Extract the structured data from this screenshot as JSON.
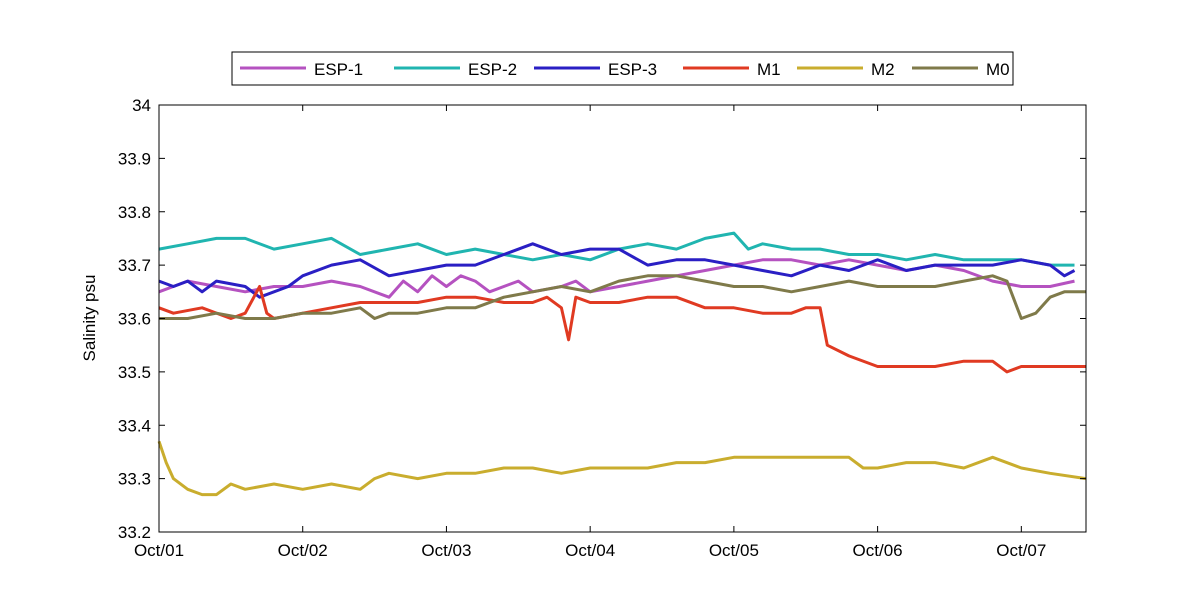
{
  "chart_data": {
    "type": "line",
    "title": "",
    "xlabel": "",
    "ylabel": "Salinity psu",
    "ylim": [
      33.2,
      34.0
    ],
    "xlim": [
      "Oct/01",
      "Oct/07"
    ],
    "x_day_range": [
      1.0,
      7.45
    ],
    "yticks": [
      "33.2",
      "33.3",
      "33.4",
      "33.5",
      "33.6",
      "33.7",
      "33.8",
      "33.9",
      "34"
    ],
    "xticks": [
      {
        "day": 1,
        "label": "Oct/01"
      },
      {
        "day": 2,
        "label": "Oct/02"
      },
      {
        "day": 3,
        "label": "Oct/03"
      },
      {
        "day": 4,
        "label": "Oct/04"
      },
      {
        "day": 5,
        "label": "Oct/05"
      },
      {
        "day": 6,
        "label": "Oct/06"
      },
      {
        "day": 7,
        "label": "Oct/07"
      }
    ],
    "grid": false,
    "legend_position": "top",
    "series": [
      {
        "name": "ESP-1",
        "color": "#b552c0",
        "points": [
          [
            1.0,
            33.65
          ],
          [
            1.2,
            33.67
          ],
          [
            1.4,
            33.66
          ],
          [
            1.6,
            33.65
          ],
          [
            1.8,
            33.66
          ],
          [
            2.0,
            33.66
          ],
          [
            2.2,
            33.67
          ],
          [
            2.4,
            33.66
          ],
          [
            2.6,
            33.64
          ],
          [
            2.7,
            33.67
          ],
          [
            2.8,
            33.65
          ],
          [
            2.9,
            33.68
          ],
          [
            3.0,
            33.66
          ],
          [
            3.1,
            33.68
          ],
          [
            3.2,
            33.67
          ],
          [
            3.3,
            33.65
          ],
          [
            3.5,
            33.67
          ],
          [
            3.6,
            33.65
          ],
          [
            3.8,
            33.66
          ],
          [
            3.9,
            33.67
          ],
          [
            4.0,
            33.65
          ],
          [
            4.2,
            33.66
          ],
          [
            4.4,
            33.67
          ],
          [
            4.6,
            33.68
          ],
          [
            4.8,
            33.69
          ],
          [
            5.0,
            33.7
          ],
          [
            5.2,
            33.71
          ],
          [
            5.4,
            33.71
          ],
          [
            5.6,
            33.7
          ],
          [
            5.8,
            33.71
          ],
          [
            6.0,
            33.7
          ],
          [
            6.2,
            33.69
          ],
          [
            6.4,
            33.7
          ],
          [
            6.6,
            33.69
          ],
          [
            6.8,
            33.67
          ],
          [
            7.0,
            33.66
          ],
          [
            7.2,
            33.66
          ],
          [
            7.37,
            33.67
          ]
        ]
      },
      {
        "name": "ESP-2",
        "color": "#20b5b0",
        "points": [
          [
            1.0,
            33.73
          ],
          [
            1.2,
            33.74
          ],
          [
            1.4,
            33.75
          ],
          [
            1.6,
            33.75
          ],
          [
            1.8,
            33.73
          ],
          [
            2.0,
            33.74
          ],
          [
            2.2,
            33.75
          ],
          [
            2.4,
            33.72
          ],
          [
            2.6,
            33.73
          ],
          [
            2.8,
            33.74
          ],
          [
            3.0,
            33.72
          ],
          [
            3.2,
            33.73
          ],
          [
            3.4,
            33.72
          ],
          [
            3.6,
            33.71
          ],
          [
            3.8,
            33.72
          ],
          [
            4.0,
            33.71
          ],
          [
            4.2,
            33.73
          ],
          [
            4.4,
            33.74
          ],
          [
            4.6,
            33.73
          ],
          [
            4.8,
            33.75
          ],
          [
            5.0,
            33.76
          ],
          [
            5.1,
            33.73
          ],
          [
            5.2,
            33.74
          ],
          [
            5.4,
            33.73
          ],
          [
            5.6,
            33.73
          ],
          [
            5.8,
            33.72
          ],
          [
            6.0,
            33.72
          ],
          [
            6.2,
            33.71
          ],
          [
            6.4,
            33.72
          ],
          [
            6.6,
            33.71
          ],
          [
            6.8,
            33.71
          ],
          [
            7.0,
            33.71
          ],
          [
            7.2,
            33.7
          ],
          [
            7.37,
            33.7
          ]
        ]
      },
      {
        "name": "ESP-3",
        "color": "#2a1fc4",
        "points": [
          [
            1.0,
            33.67
          ],
          [
            1.1,
            33.66
          ],
          [
            1.2,
            33.67
          ],
          [
            1.3,
            33.65
          ],
          [
            1.4,
            33.67
          ],
          [
            1.6,
            33.66
          ],
          [
            1.7,
            33.64
          ],
          [
            1.9,
            33.66
          ],
          [
            2.0,
            33.68
          ],
          [
            2.2,
            33.7
          ],
          [
            2.4,
            33.71
          ],
          [
            2.6,
            33.68
          ],
          [
            2.8,
            33.69
          ],
          [
            3.0,
            33.7
          ],
          [
            3.2,
            33.7
          ],
          [
            3.4,
            33.72
          ],
          [
            3.6,
            33.74
          ],
          [
            3.8,
            33.72
          ],
          [
            4.0,
            33.73
          ],
          [
            4.2,
            33.73
          ],
          [
            4.4,
            33.7
          ],
          [
            4.6,
            33.71
          ],
          [
            4.8,
            33.71
          ],
          [
            5.0,
            33.7
          ],
          [
            5.2,
            33.69
          ],
          [
            5.4,
            33.68
          ],
          [
            5.6,
            33.7
          ],
          [
            5.8,
            33.69
          ],
          [
            6.0,
            33.71
          ],
          [
            6.2,
            33.69
          ],
          [
            6.4,
            33.7
          ],
          [
            6.6,
            33.7
          ],
          [
            6.8,
            33.7
          ],
          [
            7.0,
            33.71
          ],
          [
            7.2,
            33.7
          ],
          [
            7.3,
            33.68
          ],
          [
            7.37,
            33.69
          ]
        ]
      },
      {
        "name": "M1",
        "color": "#e03a22",
        "points": [
          [
            1.0,
            33.62
          ],
          [
            1.1,
            33.61
          ],
          [
            1.3,
            33.62
          ],
          [
            1.5,
            33.6
          ],
          [
            1.6,
            33.61
          ],
          [
            1.7,
            33.66
          ],
          [
            1.75,
            33.61
          ],
          [
            1.8,
            33.6
          ],
          [
            2.0,
            33.61
          ],
          [
            2.2,
            33.62
          ],
          [
            2.4,
            33.63
          ],
          [
            2.6,
            33.63
          ],
          [
            2.8,
            33.63
          ],
          [
            3.0,
            33.64
          ],
          [
            3.2,
            33.64
          ],
          [
            3.4,
            33.63
          ],
          [
            3.6,
            33.63
          ],
          [
            3.7,
            33.64
          ],
          [
            3.8,
            33.62
          ],
          [
            3.85,
            33.56
          ],
          [
            3.9,
            33.64
          ],
          [
            4.0,
            33.63
          ],
          [
            4.2,
            33.63
          ],
          [
            4.4,
            33.64
          ],
          [
            4.6,
            33.64
          ],
          [
            4.8,
            33.62
          ],
          [
            5.0,
            33.62
          ],
          [
            5.2,
            33.61
          ],
          [
            5.4,
            33.61
          ],
          [
            5.5,
            33.62
          ],
          [
            5.6,
            33.62
          ],
          [
            5.65,
            33.55
          ],
          [
            5.8,
            33.53
          ],
          [
            6.0,
            33.51
          ],
          [
            6.2,
            33.51
          ],
          [
            6.4,
            33.51
          ],
          [
            6.6,
            33.52
          ],
          [
            6.8,
            33.52
          ],
          [
            6.9,
            33.5
          ],
          [
            7.0,
            33.51
          ],
          [
            7.2,
            33.51
          ],
          [
            7.45,
            33.51
          ]
        ]
      },
      {
        "name": "M2",
        "color": "#c9ad2e",
        "points": [
          [
            1.0,
            33.37
          ],
          [
            1.05,
            33.33
          ],
          [
            1.1,
            33.3
          ],
          [
            1.2,
            33.28
          ],
          [
            1.3,
            33.27
          ],
          [
            1.4,
            33.27
          ],
          [
            1.5,
            33.29
          ],
          [
            1.6,
            33.28
          ],
          [
            1.8,
            33.29
          ],
          [
            2.0,
            33.28
          ],
          [
            2.2,
            33.29
          ],
          [
            2.4,
            33.28
          ],
          [
            2.5,
            33.3
          ],
          [
            2.6,
            33.31
          ],
          [
            2.8,
            33.3
          ],
          [
            3.0,
            33.31
          ],
          [
            3.2,
            33.31
          ],
          [
            3.4,
            33.32
          ],
          [
            3.6,
            33.32
          ],
          [
            3.8,
            33.31
          ],
          [
            4.0,
            33.32
          ],
          [
            4.2,
            33.32
          ],
          [
            4.4,
            33.32
          ],
          [
            4.6,
            33.33
          ],
          [
            4.8,
            33.33
          ],
          [
            5.0,
            33.34
          ],
          [
            5.2,
            33.34
          ],
          [
            5.4,
            33.34
          ],
          [
            5.6,
            33.34
          ],
          [
            5.8,
            33.34
          ],
          [
            5.9,
            33.32
          ],
          [
            6.0,
            33.32
          ],
          [
            6.2,
            33.33
          ],
          [
            6.4,
            33.33
          ],
          [
            6.6,
            33.32
          ],
          [
            6.8,
            33.34
          ],
          [
            7.0,
            33.32
          ],
          [
            7.2,
            33.31
          ],
          [
            7.45,
            33.3
          ]
        ]
      },
      {
        "name": "M0",
        "color": "#7f7a4a",
        "points": [
          [
            1.0,
            33.6
          ],
          [
            1.2,
            33.6
          ],
          [
            1.4,
            33.61
          ],
          [
            1.6,
            33.6
          ],
          [
            1.8,
            33.6
          ],
          [
            2.0,
            33.61
          ],
          [
            2.2,
            33.61
          ],
          [
            2.4,
            33.62
          ],
          [
            2.5,
            33.6
          ],
          [
            2.6,
            33.61
          ],
          [
            2.8,
            33.61
          ],
          [
            3.0,
            33.62
          ],
          [
            3.2,
            33.62
          ],
          [
            3.4,
            33.64
          ],
          [
            3.6,
            33.65
          ],
          [
            3.8,
            33.66
          ],
          [
            4.0,
            33.65
          ],
          [
            4.2,
            33.67
          ],
          [
            4.4,
            33.68
          ],
          [
            4.6,
            33.68
          ],
          [
            4.8,
            33.67
          ],
          [
            5.0,
            33.66
          ],
          [
            5.2,
            33.66
          ],
          [
            5.4,
            33.65
          ],
          [
            5.6,
            33.66
          ],
          [
            5.8,
            33.67
          ],
          [
            6.0,
            33.66
          ],
          [
            6.2,
            33.66
          ],
          [
            6.4,
            33.66
          ],
          [
            6.6,
            33.67
          ],
          [
            6.8,
            33.68
          ],
          [
            6.9,
            33.67
          ],
          [
            7.0,
            33.6
          ],
          [
            7.1,
            33.61
          ],
          [
            7.2,
            33.64
          ],
          [
            7.3,
            33.65
          ],
          [
            7.45,
            33.65
          ]
        ]
      }
    ]
  }
}
